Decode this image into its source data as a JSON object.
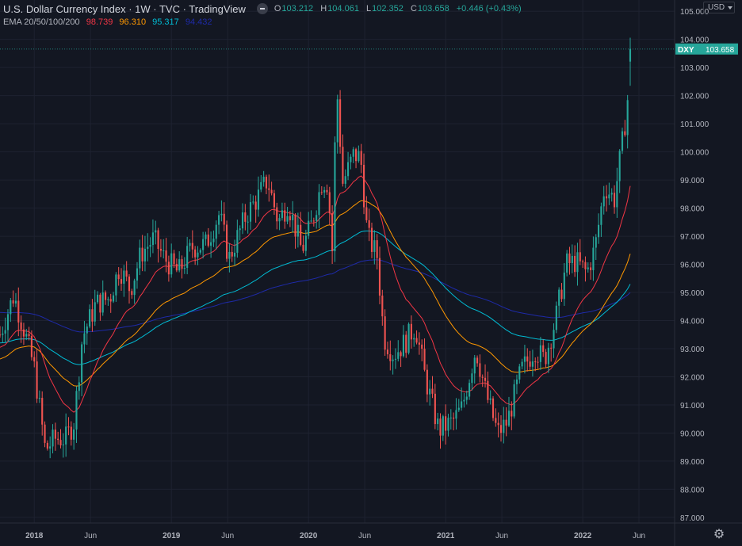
{
  "header": {
    "title": "U.S. Dollar Currency Index · 1W · TVC · TradingView",
    "ohlc": [
      {
        "key": "O",
        "value": "103.212"
      },
      {
        "key": "H",
        "value": "104.061"
      },
      {
        "key": "L",
        "value": "102.352"
      },
      {
        "key": "C",
        "value": "103.658"
      }
    ],
    "change": "+0.446 (+0.43%)"
  },
  "indicator": {
    "name": "EMA 20/50/100/200",
    "values": [
      {
        "label": "98.739",
        "color": "#f23645"
      },
      {
        "label": "96.310",
        "color": "#ff9800"
      },
      {
        "label": "95.317",
        "color": "#00bcd4"
      },
      {
        "label": "94.432",
        "color": "#1e2aa8"
      }
    ]
  },
  "currency_selector": "USD",
  "price_tag": {
    "symbol": "DXY",
    "price": "103.658",
    "color": "#26a69a"
  },
  "chart_data": {
    "type": "candlestick",
    "title": "U.S. Dollar Currency Index",
    "interval": "1W",
    "y_range": [
      86.8,
      105.4
    ],
    "y_ticks": [
      "87.000",
      "88.000",
      "89.000",
      "90.000",
      "91.000",
      "92.000",
      "93.000",
      "94.000",
      "95.000",
      "96.000",
      "97.000",
      "98.000",
      "99.000",
      "100.000",
      "101.000",
      "102.000",
      "103.000",
      "104.000",
      "105.000"
    ],
    "x_range": [
      2017.75,
      2022.67
    ],
    "x_ticks": [
      {
        "t": 2018.0,
        "label": "2018"
      },
      {
        "t": 2018.41,
        "label": "Jun"
      },
      {
        "t": 2019.0,
        "label": "2019"
      },
      {
        "t": 2019.41,
        "label": "Jun"
      },
      {
        "t": 2020.0,
        "label": "2020"
      },
      {
        "t": 2020.41,
        "label": "Jun"
      },
      {
        "t": 2021.0,
        "label": "2021"
      },
      {
        "t": 2021.41,
        "label": "Jun"
      },
      {
        "t": 2022.0,
        "label": "2022"
      },
      {
        "t": 2022.41,
        "label": "Jun"
      }
    ],
    "price_anchors": [
      [
        2017.75,
        93.5
      ],
      [
        2017.85,
        94.9
      ],
      [
        2017.93,
        93.6
      ],
      [
        2018.0,
        92.3
      ],
      [
        2018.08,
        89.4
      ],
      [
        2018.15,
        89.8
      ],
      [
        2018.23,
        89.8
      ],
      [
        2018.29,
        90.4
      ],
      [
        2018.35,
        93.4
      ],
      [
        2018.45,
        94.6
      ],
      [
        2018.55,
        94.8
      ],
      [
        2018.62,
        95.9
      ],
      [
        2018.7,
        95.1
      ],
      [
        2018.78,
        96.4
      ],
      [
        2018.87,
        96.9
      ],
      [
        2018.95,
        96.2
      ],
      [
        2019.05,
        95.7
      ],
      [
        2019.15,
        96.6
      ],
      [
        2019.25,
        96.7
      ],
      [
        2019.35,
        97.8
      ],
      [
        2019.42,
        96.2
      ],
      [
        2019.5,
        97.2
      ],
      [
        2019.55,
        97.8
      ],
      [
        2019.62,
        98.3
      ],
      [
        2019.7,
        99.0
      ],
      [
        2019.78,
        97.5
      ],
      [
        2019.85,
        98.2
      ],
      [
        2019.95,
        96.5
      ],
      [
        2020.02,
        97.4
      ],
      [
        2020.1,
        99.0
      ],
      [
        2020.14,
        98.9
      ],
      [
        2020.18,
        96.0
      ],
      [
        2020.2,
        102.8
      ],
      [
        2020.25,
        98.9
      ],
      [
        2020.33,
        99.9
      ],
      [
        2020.38,
        99.8
      ],
      [
        2020.43,
        97.0
      ],
      [
        2020.5,
        96.3
      ],
      [
        2020.55,
        93.4
      ],
      [
        2020.62,
        92.8
      ],
      [
        2020.7,
        93.2
      ],
      [
        2020.78,
        93.8
      ],
      [
        2020.85,
        92.0
      ],
      [
        2020.95,
        90.1
      ],
      [
        2021.05,
        90.4
      ],
      [
        2021.12,
        90.9
      ],
      [
        2021.22,
        93.0
      ],
      [
        2021.3,
        91.3
      ],
      [
        2021.38,
        90.0
      ],
      [
        2021.45,
        90.4
      ],
      [
        2021.55,
        92.2
      ],
      [
        2021.65,
        93.0
      ],
      [
        2021.72,
        92.6
      ],
      [
        2021.8,
        94.0
      ],
      [
        2021.88,
        96.0
      ],
      [
        2021.95,
        96.1
      ],
      [
        2022.03,
        95.7
      ],
      [
        2022.09,
        96.6
      ],
      [
        2022.16,
        98.8
      ],
      [
        2022.23,
        98.3
      ],
      [
        2022.3,
        100.7
      ],
      [
        2022.33,
        102.0
      ],
      [
        2022.36,
        103.66
      ]
    ],
    "series": [
      {
        "name": "EMA 20",
        "color": "#f23645",
        "last": 98.739
      },
      {
        "name": "EMA 50",
        "color": "#ff9800",
        "last": 96.31
      },
      {
        "name": "EMA 100",
        "color": "#00bcd4",
        "last": 95.317
      },
      {
        "name": "EMA 200",
        "color": "#1e2aa8",
        "last": 94.432
      }
    ]
  }
}
